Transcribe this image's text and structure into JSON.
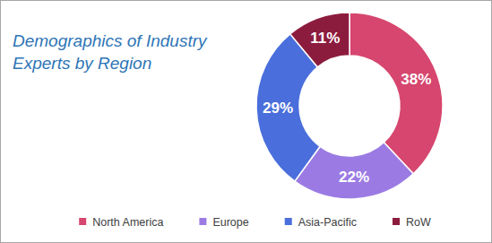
{
  "chart_data": {
    "type": "pie",
    "title": "Demographics of Industry Experts by Region",
    "categories": [
      "North America",
      "Europe",
      "Asia-Pacific",
      "RoW"
    ],
    "values": [
      38,
      22,
      29,
      11
    ],
    "value_labels": [
      "38%",
      "22%",
      "29%",
      "11%"
    ],
    "colors": [
      "#d6466e",
      "#9b7be3",
      "#4a6edb",
      "#8c1c3e"
    ],
    "data_labels": true,
    "legend": "bottom"
  }
}
